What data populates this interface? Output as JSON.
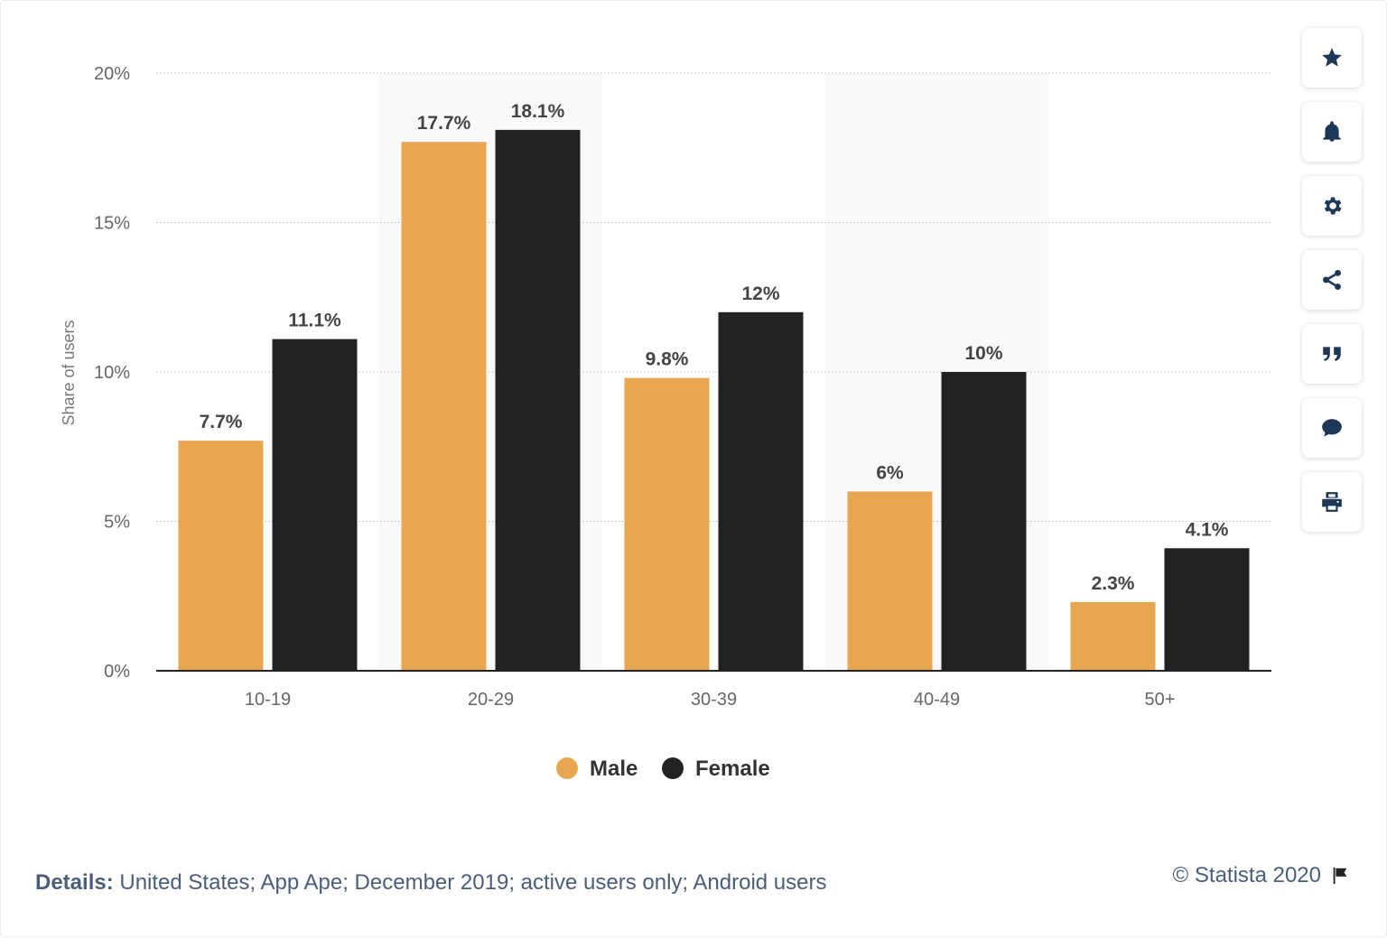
{
  "chart_data": {
    "type": "bar",
    "categories": [
      "10-19",
      "20-29",
      "30-39",
      "40-49",
      "50+"
    ],
    "series": [
      {
        "name": "Male",
        "color": "#e8a651",
        "values": [
          7.7,
          17.7,
          9.8,
          6,
          2.3
        ],
        "labels": [
          "7.7%",
          "17.7%",
          "9.8%",
          "6%",
          "2.3%"
        ]
      },
      {
        "name": "Female",
        "color": "#222222",
        "values": [
          11.1,
          18.1,
          12,
          10,
          4.1
        ],
        "labels": [
          "11.1%",
          "18.1%",
          "12%",
          "10%",
          "4.1%"
        ]
      }
    ],
    "ylabel": "Share of users",
    "ylim": [
      0,
      20
    ],
    "yticks": [
      0,
      5,
      10,
      15,
      20
    ],
    "ytick_labels": [
      "0%",
      "5%",
      "10%",
      "15%",
      "20%"
    ],
    "grid": true,
    "legend": "bottom-center"
  },
  "toolbar": {
    "items": [
      {
        "name": "favorite-button",
        "icon": "star-icon"
      },
      {
        "name": "notification-button",
        "icon": "bell-icon"
      },
      {
        "name": "settings-button",
        "icon": "gear-icon"
      },
      {
        "name": "share-button",
        "icon": "share-icon"
      },
      {
        "name": "cite-button",
        "icon": "quote-icon"
      },
      {
        "name": "comment-button",
        "icon": "speech-bubble-icon"
      },
      {
        "name": "print-button",
        "icon": "printer-icon"
      }
    ]
  },
  "footer": {
    "details_label": "Details:",
    "details_text": " United States; App Ape; December 2019; active users only; Android users",
    "copyright": "© Statista 2020"
  },
  "colors": {
    "icon": "#1f3756",
    "axis_text": "#666666",
    "label_text": "#444444",
    "band": "#f8f9fa"
  }
}
